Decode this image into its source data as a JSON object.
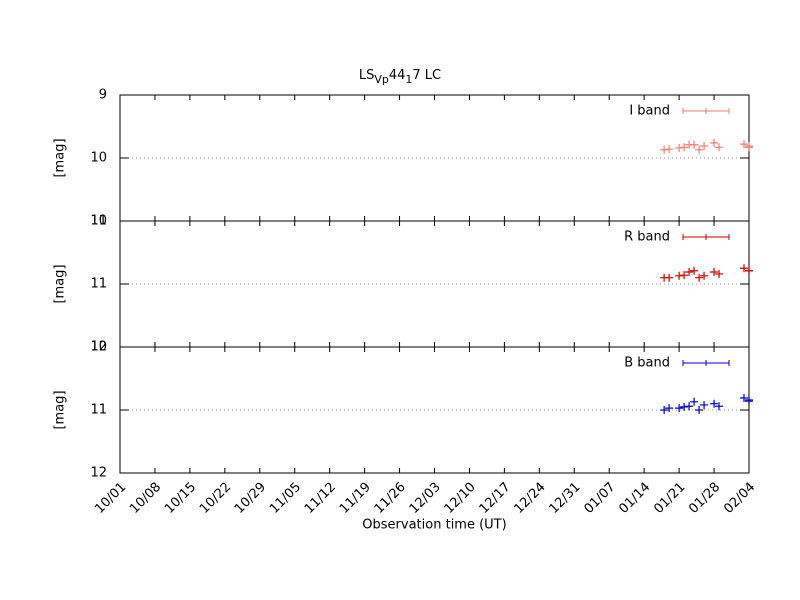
{
  "chart_data": [
    {
      "type": "scatter",
      "title": [
        "LS",
        "V",
        "p",
        "44",
        "1",
        "7 LC"
      ],
      "title_subscript": [
        false,
        true,
        true,
        false,
        true,
        false
      ],
      "ylabel": "[mag]",
      "ylim": [
        9,
        11
      ],
      "yticks": [
        9,
        10,
        11
      ],
      "inverted": true,
      "grid_lines": [
        10
      ],
      "xlim": [
        "10/01",
        "02/04"
      ],
      "x": [
        "01/18",
        "01/19",
        "01/21",
        "01/22",
        "01/23",
        "01/24",
        "01/25",
        "01/26",
        "01/28",
        "01/29",
        "02/03",
        "02/04",
        "02/04"
      ],
      "series": [
        {
          "name": "I band",
          "color": "#f07f6f",
          "values": [
            9.87,
            9.86,
            9.84,
            9.83,
            9.79,
            9.79,
            9.87,
            9.81,
            9.76,
            9.83,
            9.78,
            9.81,
            9.83
          ]
        }
      ]
    },
    {
      "type": "scatter",
      "ylabel": "[mag]",
      "ylim": [
        10,
        12
      ],
      "yticks": [
        10,
        11,
        12
      ],
      "inverted": true,
      "grid_lines": [
        11
      ],
      "xlim": [
        "10/01",
        "02/04"
      ],
      "x": [
        "01/18",
        "01/19",
        "01/21",
        "01/22",
        "01/23",
        "01/24",
        "01/25",
        "01/26",
        "01/28",
        "01/29",
        "02/03",
        "02/04",
        "02/04"
      ],
      "series": [
        {
          "name": "R band",
          "color": "#cc0000",
          "values": [
            10.9,
            10.9,
            10.87,
            10.86,
            10.81,
            10.79,
            10.9,
            10.87,
            10.81,
            10.84,
            10.75,
            10.79,
            10.79
          ]
        }
      ]
    },
    {
      "type": "scatter",
      "ylabel": "[mag]",
      "ylim": [
        10,
        12
      ],
      "yticks": [
        10,
        11,
        12
      ],
      "inverted": true,
      "grid_lines": [
        11
      ],
      "xlim": [
        "10/01",
        "02/04"
      ],
      "xlabel": "Observation time (UT)",
      "xticks": [
        "10/01",
        "10/08",
        "10/15",
        "10/22",
        "10/29",
        "11/05",
        "11/12",
        "11/19",
        "11/26",
        "12/03",
        "12/10",
        "12/17",
        "12/24",
        "12/31",
        "01/07",
        "01/14",
        "01/21",
        "01/28",
        "02/04"
      ],
      "x": [
        "01/18",
        "01/19",
        "01/21",
        "01/22",
        "01/23",
        "01/24",
        "01/25",
        "01/26",
        "01/28",
        "01/29",
        "02/03",
        "02/04",
        "02/04"
      ],
      "series": [
        {
          "name": "B band",
          "color": "#0000cc",
          "values": [
            11.0,
            10.97,
            10.97,
            10.95,
            10.94,
            10.87,
            11.0,
            10.92,
            10.9,
            10.94,
            10.81,
            10.84,
            10.86
          ]
        }
      ]
    }
  ]
}
